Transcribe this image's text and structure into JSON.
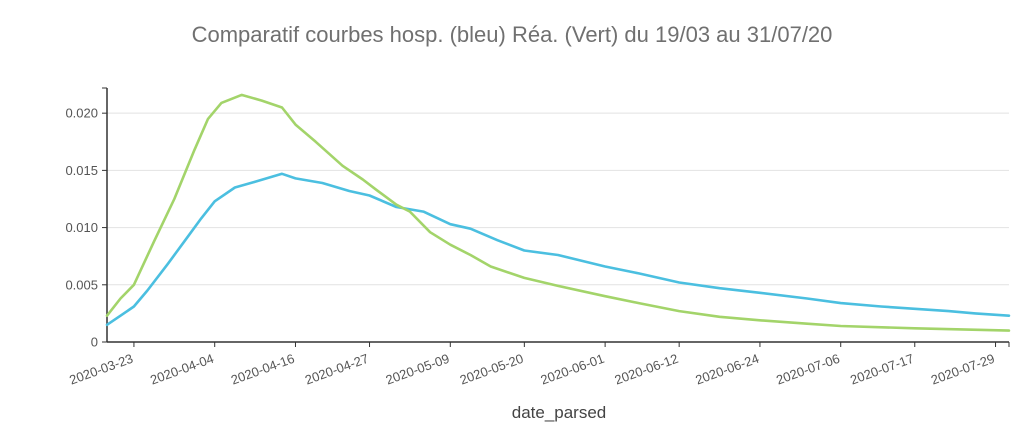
{
  "chart_data": {
    "type": "line",
    "title": "Comparatif courbes hosp. (bleu)  Réa. (Vert) du 19/03 au 31/07/20",
    "xlabel": "date_parsed",
    "ylabel": "",
    "ylim": [
      0,
      0.0222
    ],
    "xlim": [
      "2020-03-19",
      "2020-07-31"
    ],
    "grid": "horizontal",
    "y_ticks": [
      0,
      0.005,
      0.01,
      0.015,
      0.02
    ],
    "y_tick_labels": [
      "0",
      "0.005",
      "0.010",
      "0.015",
      "0.020"
    ],
    "x_ticks": [
      "2020-03-23",
      "2020-04-04",
      "2020-04-16",
      "2020-04-27",
      "2020-05-09",
      "2020-05-20",
      "2020-06-01",
      "2020-06-12",
      "2020-06-24",
      "2020-07-06",
      "2020-07-17",
      "2020-07-29"
    ],
    "series": [
      {
        "color": "#4bbfe0",
        "points": [
          [
            "2020-03-19",
            0.0015
          ],
          [
            "2020-03-21",
            0.0023
          ],
          [
            "2020-03-23",
            0.0031
          ],
          [
            "2020-03-25",
            0.0045
          ],
          [
            "2020-03-28",
            0.0068
          ],
          [
            "2020-03-31",
            0.0092
          ],
          [
            "2020-04-02",
            0.0108
          ],
          [
            "2020-04-04",
            0.0123
          ],
          [
            "2020-04-07",
            0.0135
          ],
          [
            "2020-04-10",
            0.014
          ],
          [
            "2020-04-14",
            0.0147
          ],
          [
            "2020-04-16",
            0.0143
          ],
          [
            "2020-04-20",
            0.0139
          ],
          [
            "2020-04-24",
            0.0132
          ],
          [
            "2020-04-27",
            0.0128
          ],
          [
            "2020-05-01",
            0.0118
          ],
          [
            "2020-05-05",
            0.0114
          ],
          [
            "2020-05-09",
            0.0103
          ],
          [
            "2020-05-12",
            0.0099
          ],
          [
            "2020-05-16",
            0.0089
          ],
          [
            "2020-05-20",
            0.008
          ],
          [
            "2020-05-25",
            0.0076
          ],
          [
            "2020-06-01",
            0.0066
          ],
          [
            "2020-06-06",
            0.006
          ],
          [
            "2020-06-12",
            0.0052
          ],
          [
            "2020-06-18",
            0.0047
          ],
          [
            "2020-06-24",
            0.0043
          ],
          [
            "2020-07-01",
            0.0038
          ],
          [
            "2020-07-06",
            0.0034
          ],
          [
            "2020-07-12",
            0.0031
          ],
          [
            "2020-07-17",
            0.0029
          ],
          [
            "2020-07-22",
            0.0027
          ],
          [
            "2020-07-26",
            0.0025
          ],
          [
            "2020-07-31",
            0.0023
          ]
        ]
      },
      {
        "color": "#a3d46a",
        "points": [
          [
            "2020-03-19",
            0.0023
          ],
          [
            "2020-03-21",
            0.0038
          ],
          [
            "2020-03-23",
            0.005
          ],
          [
            "2020-03-26",
            0.0088
          ],
          [
            "2020-03-29",
            0.0125
          ],
          [
            "2020-04-01",
            0.0168
          ],
          [
            "2020-04-03",
            0.0195
          ],
          [
            "2020-04-05",
            0.0209
          ],
          [
            "2020-04-08",
            0.0216
          ],
          [
            "2020-04-11",
            0.0211
          ],
          [
            "2020-04-14",
            0.0205
          ],
          [
            "2020-04-16",
            0.019
          ],
          [
            "2020-04-19",
            0.0175
          ],
          [
            "2020-04-23",
            0.0154
          ],
          [
            "2020-04-26",
            0.0142
          ],
          [
            "2020-04-28",
            0.0133
          ],
          [
            "2020-05-01",
            0.012
          ],
          [
            "2020-05-03",
            0.0114
          ],
          [
            "2020-05-06",
            0.0096
          ],
          [
            "2020-05-09",
            0.0085
          ],
          [
            "2020-05-12",
            0.0076
          ],
          [
            "2020-05-15",
            0.0066
          ],
          [
            "2020-05-20",
            0.0056
          ],
          [
            "2020-05-25",
            0.0049
          ],
          [
            "2020-06-01",
            0.004
          ],
          [
            "2020-06-06",
            0.0034
          ],
          [
            "2020-06-12",
            0.0027
          ],
          [
            "2020-06-18",
            0.0022
          ],
          [
            "2020-06-24",
            0.0019
          ],
          [
            "2020-07-01",
            0.0016
          ],
          [
            "2020-07-06",
            0.0014
          ],
          [
            "2020-07-17",
            0.0012
          ],
          [
            "2020-07-24",
            0.0011
          ],
          [
            "2020-07-31",
            0.001
          ]
        ]
      }
    ]
  }
}
